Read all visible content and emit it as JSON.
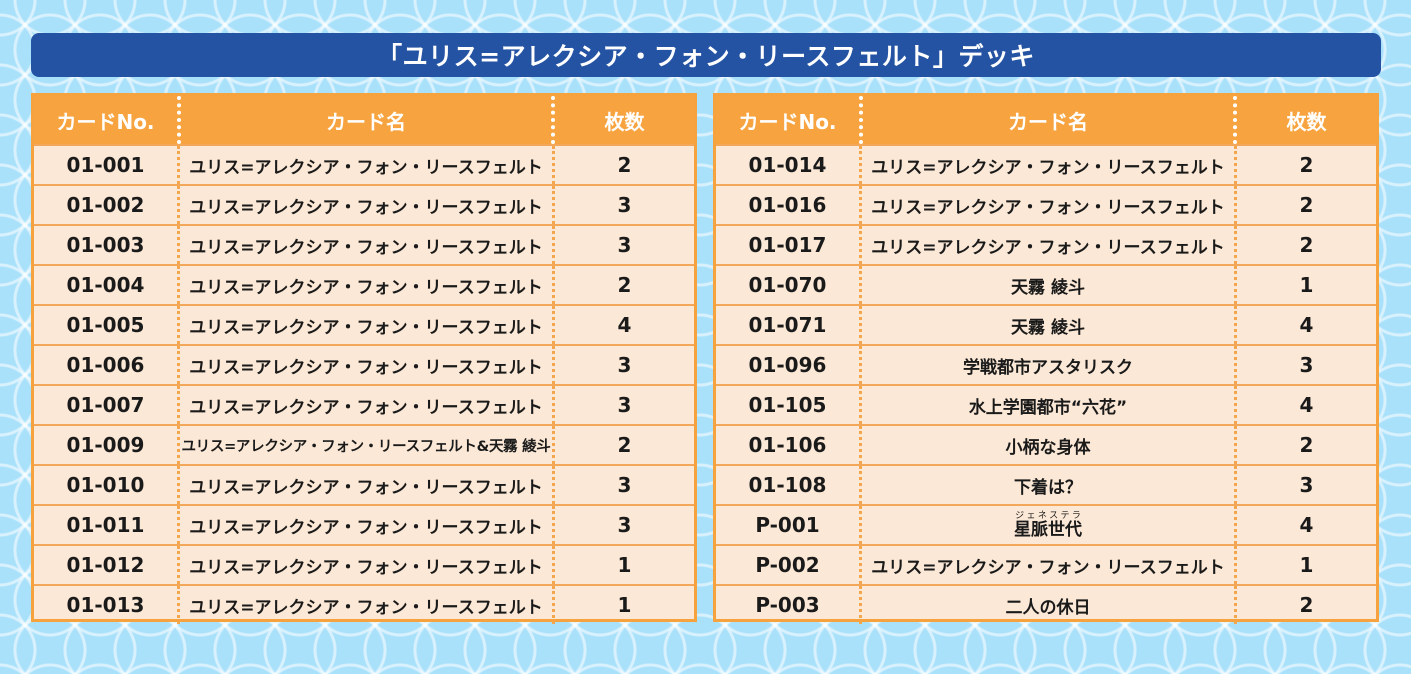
{
  "title": "「ユリス=アレクシア・フォン・リースフェルト」デッキ",
  "headers": {
    "number": "カードNo.",
    "name": "カード名",
    "quantity": "枚数"
  },
  "left_rows": [
    {
      "number": "01-001",
      "name": "ユリス=アレクシア・フォン・リースフェルト",
      "quantity": "2"
    },
    {
      "number": "01-002",
      "name": "ユリス=アレクシア・フォン・リースフェルト",
      "quantity": "3"
    },
    {
      "number": "01-003",
      "name": "ユリス=アレクシア・フォン・リースフェルト",
      "quantity": "3"
    },
    {
      "number": "01-004",
      "name": "ユリス=アレクシア・フォン・リースフェルト",
      "quantity": "2"
    },
    {
      "number": "01-005",
      "name": "ユリス=アレクシア・フォン・リースフェルト",
      "quantity": "4"
    },
    {
      "number": "01-006",
      "name": "ユリス=アレクシア・フォン・リースフェルト",
      "quantity": "3"
    },
    {
      "number": "01-007",
      "name": "ユリス=アレクシア・フォン・リースフェルト",
      "quantity": "3"
    },
    {
      "number": "01-009",
      "name": "ユリス=アレクシア・フォン・リースフェルト&天霧 綾斗",
      "quantity": "2"
    },
    {
      "number": "01-010",
      "name": "ユリス=アレクシア・フォン・リースフェルト",
      "quantity": "3"
    },
    {
      "number": "01-011",
      "name": "ユリス=アレクシア・フォン・リースフェルト",
      "quantity": "3"
    },
    {
      "number": "01-012",
      "name": "ユリス=アレクシア・フォン・リースフェルト",
      "quantity": "1"
    },
    {
      "number": "01-013",
      "name": "ユリス=アレクシア・フォン・リースフェルト",
      "quantity": "1"
    }
  ],
  "right_rows": [
    {
      "number": "01-014",
      "name": "ユリス=アレクシア・フォン・リースフェルト",
      "quantity": "2"
    },
    {
      "number": "01-016",
      "name": "ユリス=アレクシア・フォン・リースフェルト",
      "quantity": "2"
    },
    {
      "number": "01-017",
      "name": "ユリス=アレクシア・フォン・リースフェルト",
      "quantity": "2"
    },
    {
      "number": "01-070",
      "name": "天霧 綾斗",
      "quantity": "1"
    },
    {
      "number": "01-071",
      "name": "天霧 綾斗",
      "quantity": "4"
    },
    {
      "number": "01-096",
      "name": "学戦都市アスタリスク",
      "quantity": "3"
    },
    {
      "number": "01-105",
      "name": "水上学園都市“六花”",
      "quantity": "4"
    },
    {
      "number": "01-106",
      "name": "小柄な身体",
      "quantity": "2"
    },
    {
      "number": "01-108",
      "name": "下着は？",
      "quantity": "3"
    },
    {
      "number": "P-001",
      "name": "星脈世代",
      "ruby": "ジェネステラ",
      "quantity": "4"
    },
    {
      "number": "P-002",
      "name": "ユリス=アレクシア・フォン・リースフェルト",
      "quantity": "1"
    },
    {
      "number": "P-003",
      "name": "二人の休日",
      "quantity": "2"
    }
  ],
  "colors": {
    "background": "#a9e1fb",
    "title_bar": "#2553a3",
    "header": "#f7a440",
    "row": "#fbe8d6",
    "border": "#f6a33f"
  }
}
